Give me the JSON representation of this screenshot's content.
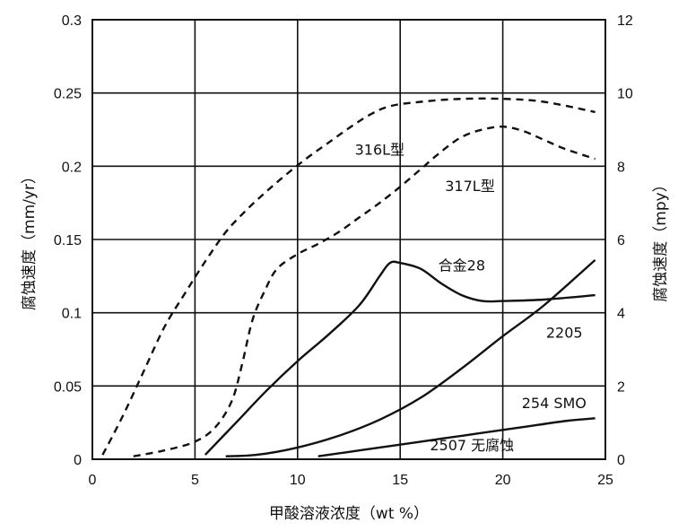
{
  "chart_data": {
    "type": "line",
    "xlabel": "甲酸溶液浓度（wt %）",
    "ylabel": "腐蚀速度（mm/yr）",
    "y2label": "腐蚀速度（mpy）",
    "xlim": [
      0,
      25
    ],
    "ylim": [
      0,
      0.3
    ],
    "y2lim": [
      0,
      12
    ],
    "grid": true,
    "x_ticks": [
      "0",
      "5",
      "10",
      "15",
      "20",
      "25"
    ],
    "y_ticks": [
      "0",
      "0.05",
      "0.1",
      "0.15",
      "0.2",
      "0.25",
      "0.3"
    ],
    "y2_ticks": [
      "0",
      "2",
      "4",
      "6",
      "8",
      "10",
      "12"
    ],
    "series": [
      {
        "name": "316L型",
        "style": "dashed",
        "x": [
          0.5,
          1.5,
          2.5,
          3.5,
          4.5,
          5.5,
          6.5,
          7.5,
          8.5,
          9.5,
          10.5,
          11.5,
          12.5,
          13.5,
          14.5,
          16,
          18,
          20,
          22,
          24.5
        ],
        "y": [
          0.003,
          0.03,
          0.06,
          0.09,
          0.113,
          0.135,
          0.155,
          0.17,
          0.183,
          0.195,
          0.206,
          0.216,
          0.226,
          0.235,
          0.241,
          0.244,
          0.246,
          0.246,
          0.244,
          0.237
        ]
      },
      {
        "name": "317L型",
        "style": "dashed",
        "x": [
          2,
          3.5,
          5,
          6,
          6.8,
          7.3,
          7.8,
          8.4,
          9,
          10,
          11,
          12,
          13,
          14,
          15,
          16,
          17,
          18,
          19,
          20,
          21,
          22,
          23,
          24.5
        ],
        "y": [
          0.002,
          0.006,
          0.012,
          0.022,
          0.04,
          0.065,
          0.095,
          0.115,
          0.13,
          0.14,
          0.147,
          0.155,
          0.165,
          0.175,
          0.186,
          0.198,
          0.21,
          0.22,
          0.225,
          0.227,
          0.224,
          0.218,
          0.212,
          0.205
        ]
      },
      {
        "name": "合金28",
        "style": "solid",
        "x": [
          5.5,
          7,
          8.5,
          10,
          11.5,
          13,
          14,
          14.5,
          15,
          16,
          17,
          18,
          19,
          20,
          22,
          24.5
        ],
        "y": [
          0.003,
          0.025,
          0.047,
          0.067,
          0.085,
          0.105,
          0.125,
          0.134,
          0.134,
          0.13,
          0.12,
          0.112,
          0.108,
          0.108,
          0.109,
          0.112
        ]
      },
      {
        "name": "2205",
        "style": "solid",
        "x": [
          6.5,
          8,
          10,
          12,
          14,
          16,
          18,
          20,
          22,
          24.5
        ],
        "y": [
          0.002,
          0.003,
          0.008,
          0.016,
          0.027,
          0.042,
          0.062,
          0.084,
          0.105,
          0.136
        ]
      },
      {
        "name": "254 SMO",
        "style": "solid",
        "x": [
          11,
          13,
          15,
          17,
          19,
          21,
          23,
          24.5
        ],
        "y": [
          0.002,
          0.006,
          0.01,
          0.014,
          0.018,
          0.022,
          0.026,
          0.028
        ]
      }
    ],
    "annotations": [
      {
        "text": "2507 无腐蚀",
        "x": 18.5,
        "y": 0.005
      }
    ]
  }
}
